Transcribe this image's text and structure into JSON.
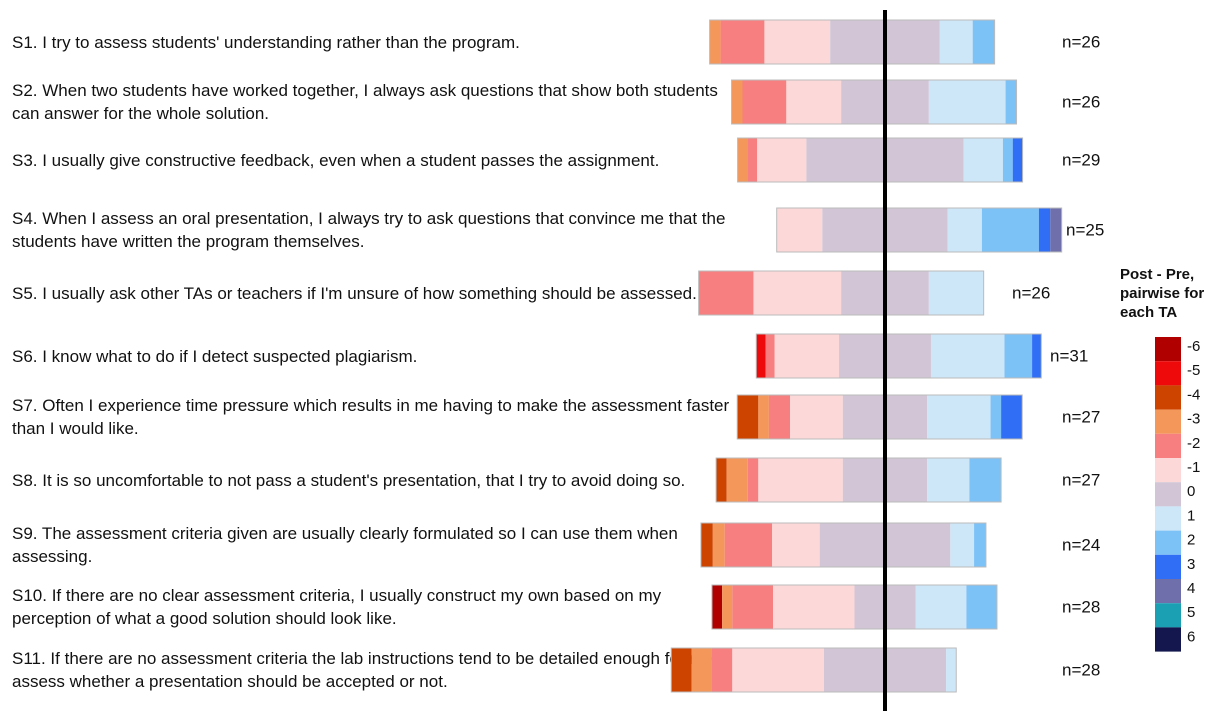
{
  "chart_data": {
    "type": "diverging_stacked_bar",
    "categories": [
      "S1. I try to assess students' understanding rather than the program.",
      "S2. When two students have worked together, I always ask questions that show both students can answer for the whole solution.",
      "S3. I usually give constructive feedback, even when a student passes the assignment.",
      "S4. When I assess an oral presentation, I always try to ask questions that convince me that the students have written the program themselves.",
      "S5. I usually ask other TAs or teachers if I'm unsure of how something should be assessed.",
      "S6. I know what to do if I detect suspected plagiarism.",
      "S7. Often I experience time pressure which results in me having to make the assessment faster than I would like.",
      "S8. It is so uncomfortable to not pass a student's presentation, that I try to avoid doing so.",
      "S9. The assessment criteria given are usually clearly formulated so I can use them when assessing.",
      "S10. If there are no clear assessment criteria, I usually construct my own based on my perception of what a good solution should look like.",
      "S11. If there are no assessment criteria the lab instructions tend to be detailed enough for me to assess whether a presentation should be accepted or not."
    ],
    "n": [
      26,
      26,
      29,
      25,
      26,
      31,
      27,
      27,
      24,
      28,
      28
    ],
    "n_labels": [
      "n=26",
      "n=26",
      "n=29",
      "n=25",
      "n=26",
      "n=31",
      "n=27",
      "n=27",
      "n=24",
      "n=28",
      "n=28"
    ],
    "legend_title": "Post - Pre, pairwise for each TA",
    "series": [
      {
        "name": "-6",
        "color": "#b00000",
        "values": [
          0,
          0,
          0,
          0,
          0,
          0,
          0,
          0,
          0,
          1,
          0
        ]
      },
      {
        "name": "-5",
        "color": "#ee0a0a",
        "values": [
          0,
          0,
          0,
          0,
          0,
          1,
          0,
          0,
          0,
          0,
          0
        ]
      },
      {
        "name": "-4",
        "color": "#cc4400",
        "values": [
          0,
          0,
          0,
          0,
          0,
          0,
          2,
          1,
          1,
          0,
          2
        ]
      },
      {
        "name": "-3",
        "color": "#f4975a",
        "values": [
          1,
          1,
          1,
          0,
          0,
          0,
          1,
          2,
          1,
          1,
          2
        ]
      },
      {
        "name": "-2",
        "color": "#f77f7f",
        "values": [
          4,
          4,
          1,
          0,
          5,
          1,
          2,
          1,
          4,
          4,
          2
        ]
      },
      {
        "name": "-1",
        "color": "#fdd8d8",
        "values": [
          6,
          5,
          5,
          4,
          8,
          7,
          5,
          8,
          4,
          8,
          9
        ]
      },
      {
        "name": "0",
        "color": "#d2c6d6",
        "values": [
          10,
          8,
          16,
          11,
          8,
          10,
          8,
          8,
          11,
          6,
          12
        ]
      },
      {
        "name": "1",
        "color": "#cde6f8",
        "values": [
          3,
          7,
          4,
          3,
          5,
          8,
          6,
          4,
          2,
          5,
          1
        ]
      },
      {
        "name": "2",
        "color": "#7cc2f7",
        "values": [
          2,
          1,
          1,
          5,
          0,
          3,
          1,
          3,
          1,
          3,
          0
        ]
      },
      {
        "name": "3",
        "color": "#2f6ef5",
        "values": [
          0,
          0,
          1,
          1,
          0,
          1,
          2,
          0,
          0,
          0,
          0
        ]
      },
      {
        "name": "4",
        "color": "#6f70ab",
        "values": [
          0,
          0,
          0,
          1,
          0,
          0,
          0,
          0,
          0,
          0,
          0
        ]
      },
      {
        "name": "5",
        "color": "#1a9fb3",
        "values": [
          0,
          0,
          0,
          0,
          0,
          0,
          0,
          0,
          0,
          0,
          0
        ]
      },
      {
        "name": "6",
        "color": "#14174d",
        "values": [
          0,
          0,
          0,
          0,
          0,
          0,
          0,
          0,
          0,
          0,
          0
        ]
      }
    ]
  }
}
